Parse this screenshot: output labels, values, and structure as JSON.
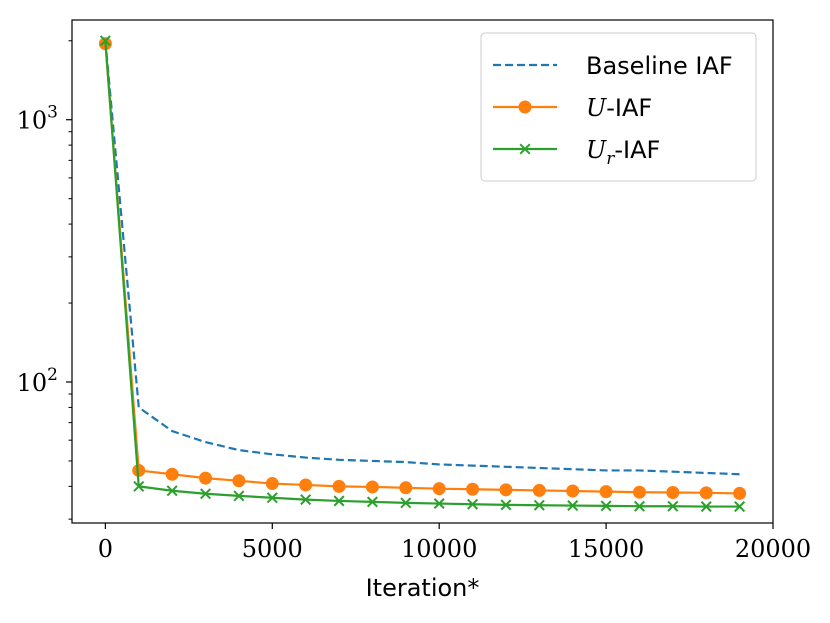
{
  "chart_data": {
    "type": "line",
    "title": "",
    "xlabel": "Iteration*",
    "ylabel": "",
    "yscale": "log",
    "xlim": [
      -1000,
      20000
    ],
    "ylim": [
      29,
      2400
    ],
    "xticks": [
      0,
      5000,
      10000,
      15000,
      20000
    ],
    "xtick_labels": [
      "0",
      "5000",
      "10000",
      "15000",
      "20000"
    ],
    "yticks_major": [
      100,
      1000
    ],
    "ytick_major_base": "10",
    "ytick_major_exponents": [
      "2",
      "3"
    ],
    "yticks_minor": [
      30,
      40,
      50,
      60,
      70,
      80,
      90,
      200,
      300,
      400,
      500,
      600,
      700,
      800,
      900,
      2000
    ],
    "legend": {
      "position": "top-right",
      "entries": [
        {
          "series": 0,
          "text": "Baseline IAF"
        },
        {
          "series": 1,
          "base": "U",
          "sub": "",
          "suffix": "-IAF"
        },
        {
          "series": 2,
          "base": "U",
          "sub": "r",
          "suffix": "-IAF"
        }
      ]
    },
    "series": [
      {
        "name": "Baseline IAF",
        "color": "#1f77b4",
        "linestyle": "dashed",
        "marker": "none",
        "x": [
          0,
          1000,
          2000,
          3000,
          4000,
          5000,
          6000,
          7000,
          8000,
          9000,
          10000,
          11000,
          12000,
          13000,
          14000,
          15000,
          16000,
          17000,
          18000,
          19000
        ],
        "values": [
          2000,
          80,
          65,
          59,
          55,
          53,
          51.5,
          50.5,
          50,
          49.5,
          48.5,
          48,
          47.5,
          47,
          46.5,
          46,
          46,
          45.5,
          45,
          44.5
        ]
      },
      {
        "name": "U-IAF",
        "color": "#ff7f0e",
        "linestyle": "solid",
        "marker": "circle",
        "x": [
          0,
          1000,
          2000,
          3000,
          4000,
          5000,
          6000,
          7000,
          8000,
          9000,
          10000,
          11000,
          12000,
          13000,
          14000,
          15000,
          16000,
          17000,
          18000,
          19000
        ],
        "values": [
          1950,
          46,
          44.5,
          43,
          42,
          41,
          40.5,
          40,
          39.8,
          39.5,
          39.2,
          39,
          38.8,
          38.6,
          38.4,
          38.2,
          38,
          37.9,
          37.8,
          37.6
        ]
      },
      {
        "name": "Ur-IAF",
        "color": "#2ca02c",
        "linestyle": "solid",
        "marker": "x",
        "x": [
          0,
          1000,
          2000,
          3000,
          4000,
          5000,
          6000,
          7000,
          8000,
          9000,
          10000,
          11000,
          12000,
          13000,
          14000,
          15000,
          16000,
          17000,
          18000,
          19000
        ],
        "values": [
          2000,
          40,
          38.5,
          37.5,
          36.8,
          36.2,
          35.6,
          35.2,
          34.9,
          34.6,
          34.4,
          34.2,
          34,
          33.9,
          33.8,
          33.7,
          33.6,
          33.6,
          33.5,
          33.5
        ]
      }
    ]
  }
}
